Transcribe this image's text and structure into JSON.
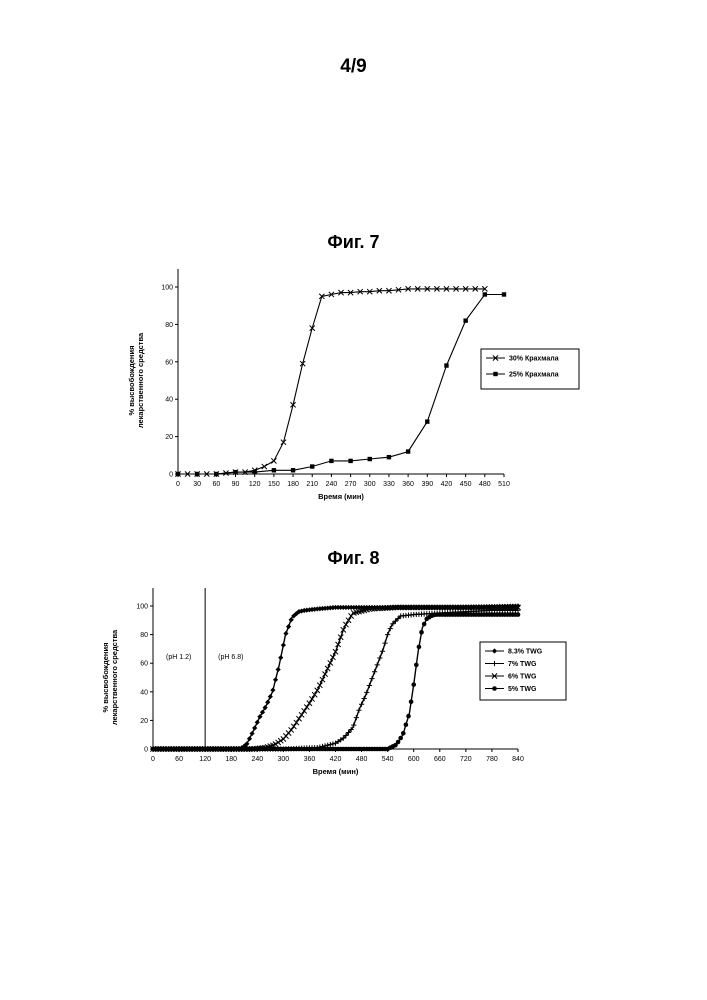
{
  "page": {
    "number": "4/9"
  },
  "figures": {
    "fig7_title": "Фиг. 7",
    "fig8_title": "Фиг. 8"
  },
  "chart_data": [
    {
      "type": "line",
      "title": "Фиг. 7",
      "xlabel": "Время (мин)",
      "ylabel_lines": [
        "% высвобождения",
        "лекарственного средства"
      ],
      "xlim": [
        0,
        510
      ],
      "ylim": [
        0,
        100
      ],
      "xticks": [
        0,
        30,
        60,
        90,
        120,
        150,
        180,
        210,
        240,
        270,
        300,
        330,
        360,
        390,
        420,
        450,
        480,
        510
      ],
      "yticks": [
        0,
        20,
        40,
        60,
        80,
        100
      ],
      "grid": false,
      "legend_position": "right",
      "series": [
        {
          "name": "30% Крахмала",
          "marker": "x",
          "x": [
            0,
            15,
            30,
            45,
            60,
            75,
            90,
            105,
            120,
            135,
            150,
            165,
            180,
            195,
            210,
            225,
            240,
            255,
            270,
            285,
            300,
            315,
            330,
            345,
            360,
            375,
            390,
            405,
            420,
            435,
            450,
            465,
            480
          ],
          "y": [
            0,
            0,
            0,
            0,
            0,
            0.5,
            1,
            1,
            2,
            4,
            7,
            17,
            37,
            59,
            78,
            95,
            96,
            97,
            97,
            97.5,
            97.5,
            98,
            98,
            98.5,
            99,
            99,
            99,
            99,
            99,
            99,
            99,
            99,
            99
          ]
        },
        {
          "name": "25% Крахмала",
          "marker": "square",
          "x": [
            0,
            30,
            60,
            90,
            120,
            150,
            180,
            210,
            240,
            270,
            300,
            330,
            360,
            390,
            420,
            450,
            480,
            510
          ],
          "y": [
            0,
            0,
            0,
            1,
            1,
            2,
            2,
            4,
            7,
            7,
            8,
            9,
            12,
            28,
            58,
            82,
            96,
            96
          ]
        }
      ]
    },
    {
      "type": "line",
      "title": "Фиг. 8",
      "xlabel": "Время (мин)",
      "ylabel_lines": [
        "% высвобождения",
        "лекарственного средства"
      ],
      "xlim": [
        0,
        840
      ],
      "ylim": [
        0,
        100
      ],
      "xticks": [
        0,
        60,
        120,
        180,
        240,
        300,
        360,
        420,
        480,
        540,
        600,
        660,
        720,
        780,
        840
      ],
      "yticks": [
        0,
        20,
        40,
        60,
        80,
        100
      ],
      "grid": false,
      "legend_position": "right",
      "annotations": [
        {
          "text": "(pH 1.2)",
          "x": 30,
          "y": 63
        },
        {
          "text": "(pH 6.8)",
          "x": 150,
          "y": 63
        }
      ],
      "vline_x": 120,
      "series": [
        {
          "name": "8.3% TWG",
          "marker": "diamond",
          "x": [
            0,
            200,
            215,
            230,
            245,
            260,
            275,
            290,
            305,
            320,
            335,
            350,
            380,
            420,
            480,
            560,
            660,
            760,
            840
          ],
          "y": [
            0,
            0,
            3,
            12,
            22,
            30,
            40,
            58,
            80,
            92,
            96,
            97,
            98,
            99,
            99,
            99,
            99,
            99.5,
            100
          ]
        },
        {
          "name": "7% TWG",
          "marker": "plus",
          "x": [
            0,
            300,
            380,
            420,
            440,
            460,
            475,
            490,
            505,
            520,
            530,
            540,
            550,
            560,
            570,
            600,
            660,
            720,
            780,
            840
          ],
          "y": [
            0,
            0,
            1,
            4,
            8,
            15,
            28,
            38,
            50,
            62,
            70,
            80,
            87,
            90,
            93,
            94,
            95,
            96,
            97,
            97
          ]
        },
        {
          "name": "6% TWG",
          "marker": "x",
          "x": [
            0,
            230,
            260,
            280,
            300,
            320,
            340,
            360,
            380,
            400,
            420,
            440,
            460,
            500,
            560,
            640,
            720,
            840
          ],
          "y": [
            0,
            0,
            1,
            3,
            7,
            14,
            23,
            32,
            42,
            55,
            68,
            85,
            95,
            98,
            99,
            99,
            99,
            99
          ]
        },
        {
          "name": "5% TWG",
          "marker": "circle",
          "x": [
            0,
            480,
            540,
            560,
            575,
            590,
            600,
            610,
            620,
            630,
            640,
            650,
            660,
            680,
            720,
            780,
            840
          ],
          "y": [
            0,
            0,
            0,
            3,
            10,
            25,
            45,
            68,
            85,
            91,
            93,
            94,
            94,
            94,
            94,
            94,
            94
          ]
        }
      ]
    }
  ]
}
